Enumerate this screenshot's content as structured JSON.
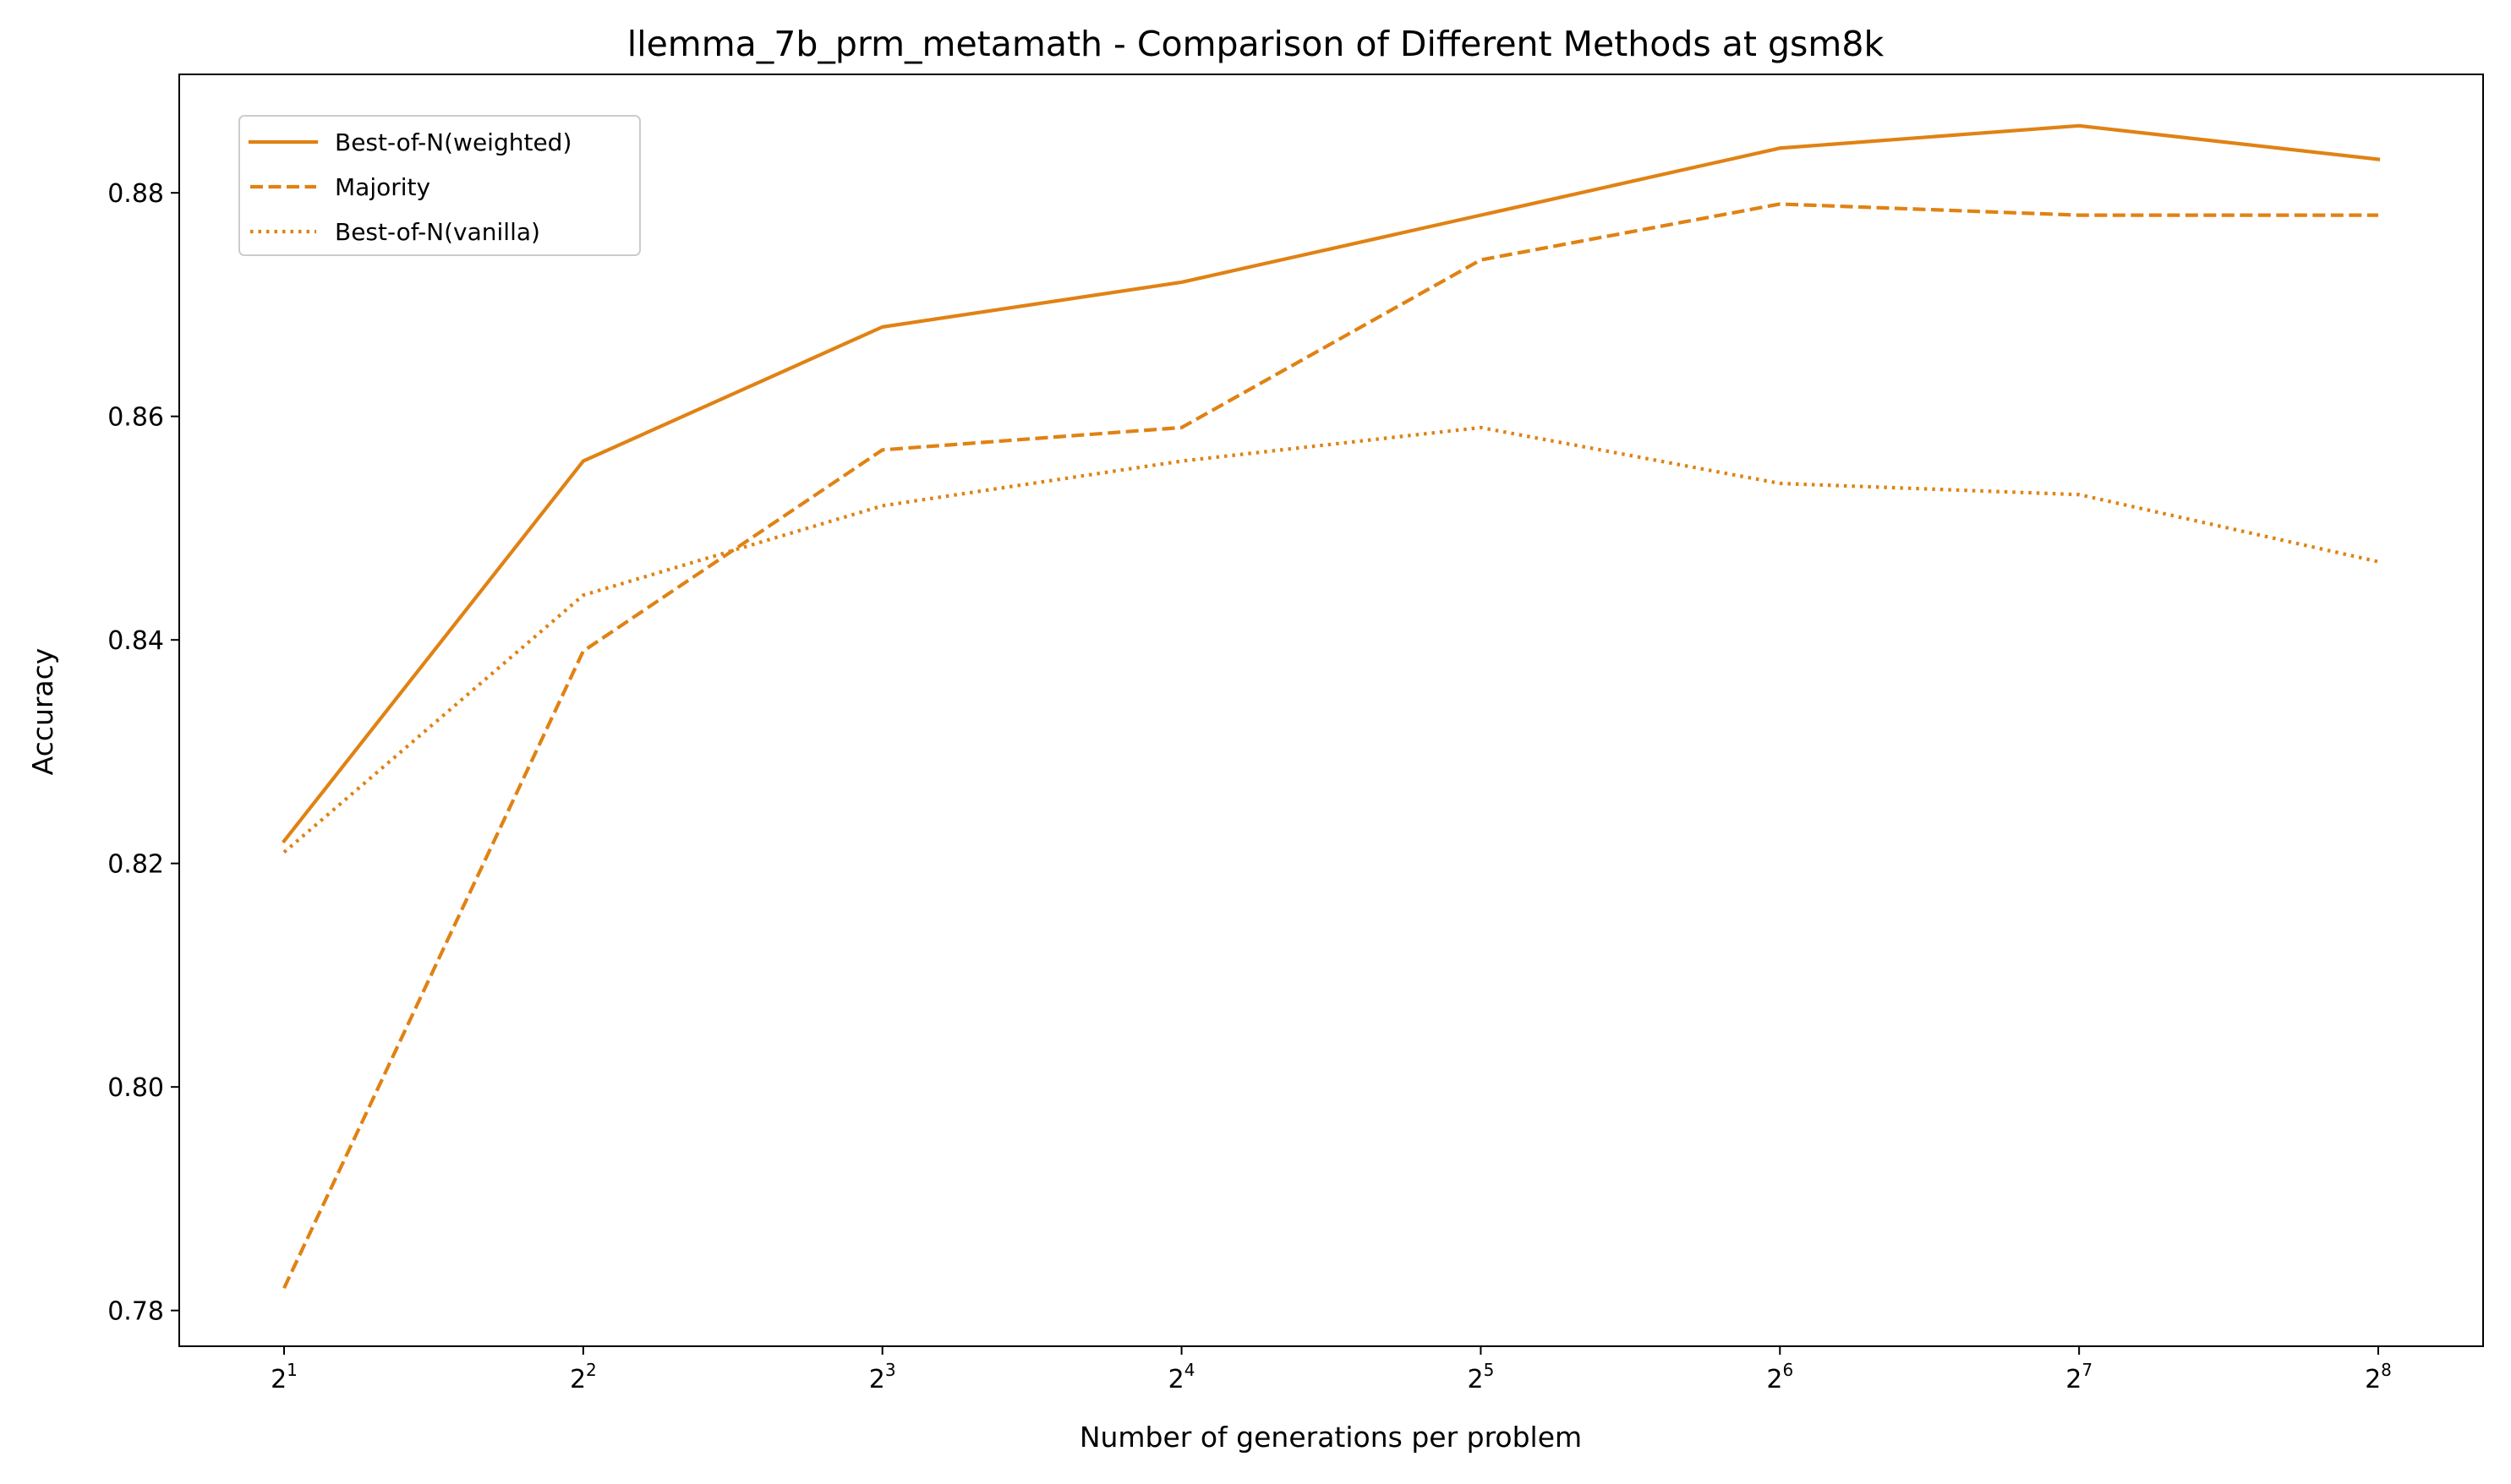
{
  "chart_data": {
    "type": "line",
    "title": "llemma_7b_prm_metamath - Comparison of Different Methods at gsm8k",
    "xlabel": "Number of generations per problem",
    "ylabel": "Accuracy",
    "x": [
      2,
      4,
      8,
      16,
      32,
      64,
      128,
      256
    ],
    "x_ticks": [
      {
        "base": "2",
        "exp": "1"
      },
      {
        "base": "2",
        "exp": "2"
      },
      {
        "base": "2",
        "exp": "3"
      },
      {
        "base": "2",
        "exp": "4"
      },
      {
        "base": "2",
        "exp": "5"
      },
      {
        "base": "2",
        "exp": "6"
      },
      {
        "base": "2",
        "exp": "7"
      },
      {
        "base": "2",
        "exp": "8"
      }
    ],
    "x_scale": "log2",
    "y_ticks": [
      "0.78",
      "0.80",
      "0.82",
      "0.84",
      "0.86",
      "0.88"
    ],
    "y_tick_values": [
      0.78,
      0.8,
      0.82,
      0.84,
      0.86,
      0.88
    ],
    "ylim": [
      0.7768,
      0.8906
    ],
    "grid": false,
    "legend_position": "top-left",
    "series": [
      {
        "name": "Best-of-N(weighted)",
        "style": "solid",
        "color": "#e08214",
        "values": [
          0.822,
          0.856,
          0.868,
          0.872,
          0.878,
          0.884,
          0.886,
          0.883
        ]
      },
      {
        "name": "Majority",
        "style": "dashed",
        "color": "#e08214",
        "values": [
          0.782,
          0.839,
          0.857,
          0.859,
          0.874,
          0.879,
          0.878,
          0.878
        ]
      },
      {
        "name": "Best-of-N(vanilla)",
        "style": "dotted",
        "color": "#e08214",
        "values": [
          0.821,
          0.844,
          0.852,
          0.856,
          0.859,
          0.854,
          0.853,
          0.847
        ]
      }
    ]
  }
}
